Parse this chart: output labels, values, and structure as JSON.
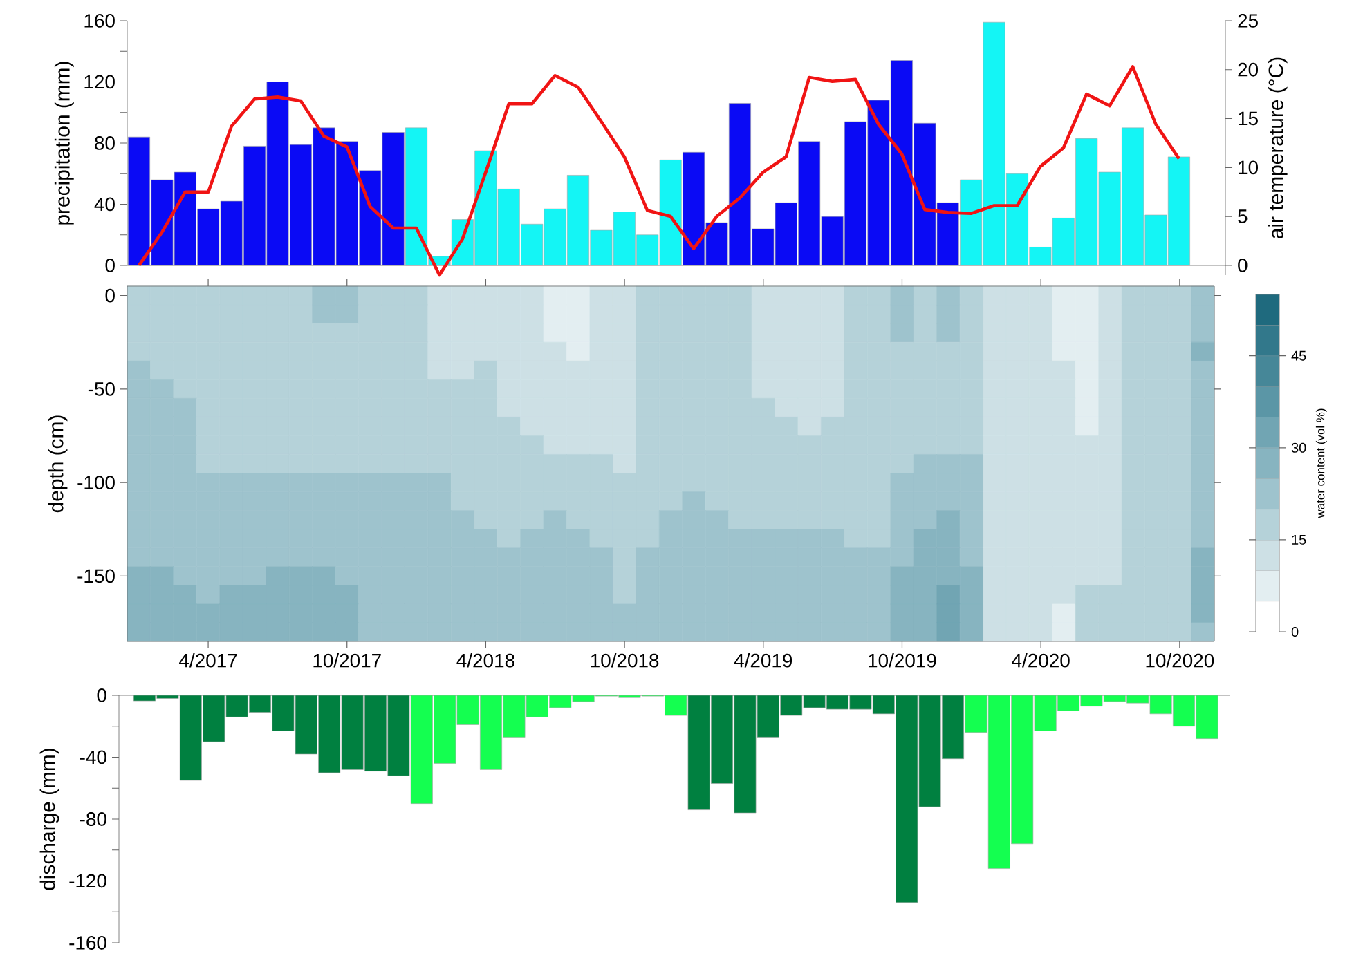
{
  "chart_data": [
    {
      "type": "bar",
      "ylabel": "precipitation (mm)",
      "categories": [
        null,
        null,
        null,
        null,
        null,
        null,
        null,
        null,
        null,
        null,
        null,
        null,
        null,
        null,
        null,
        null,
        null,
        null,
        null,
        null,
        null,
        null,
        null,
        null,
        null,
        null,
        null,
        null,
        null,
        null,
        null,
        null,
        null,
        null,
        null,
        null,
        null,
        null,
        null,
        null,
        null,
        null,
        null,
        null,
        null,
        null
      ],
      "values": [
        84,
        56,
        61,
        37,
        42,
        78,
        120,
        79,
        90,
        81,
        62,
        87,
        90,
        6,
        30,
        75,
        50,
        27,
        37,
        59,
        23,
        35,
        20,
        69,
        74,
        28,
        106,
        24,
        41,
        81,
        32,
        94,
        108,
        134,
        93,
        41,
        56,
        159,
        60,
        12,
        31,
        83,
        61,
        90,
        33,
        71
      ],
      "colors": [
        "#0a0af5",
        "#0a0af5",
        "#0a0af5",
        "#0a0af5",
        "#0a0af5",
        "#0a0af5",
        "#0a0af5",
        "#0a0af5",
        "#0a0af5",
        "#0a0af5",
        "#0a0af5",
        "#0a0af5",
        "#14f5f5",
        "#14f5f5",
        "#14f5f5",
        "#14f5f5",
        "#14f5f5",
        "#14f5f5",
        "#14f5f5",
        "#14f5f5",
        "#14f5f5",
        "#14f5f5",
        "#14f5f5",
        "#14f5f5",
        "#0a0af5",
        "#0a0af5",
        "#0a0af5",
        "#0a0af5",
        "#0a0af5",
        "#0a0af5",
        "#0a0af5",
        "#0a0af5",
        "#0a0af5",
        "#0a0af5",
        "#0a0af5",
        "#0a0af5",
        "#14f5f5",
        "#14f5f5",
        "#14f5f5",
        "#14f5f5",
        "#14f5f5",
        "#14f5f5",
        "#14f5f5",
        "#14f5f5",
        "#14f5f5",
        "#14f5f5"
      ],
      "ylim": [
        0,
        160
      ],
      "yticks": [
        0,
        {
          "value": 20,
          "label": null
        },
        40,
        {
          "value": 60,
          "label": null
        },
        80,
        {
          "value": 100,
          "label": null
        },
        120,
        {
          "value": 140,
          "label": null
        },
        160
      ],
      "tick_labels": "y"
    },
    {
      "type": "line",
      "ylabel": "air temperature (°C)",
      "color": "#f01414",
      "categories": [
        null,
        null,
        null,
        null,
        null,
        null,
        null,
        null,
        null,
        null,
        null,
        null,
        null,
        null,
        null,
        null,
        null,
        null,
        null,
        null,
        null,
        null,
        null,
        null,
        null,
        null,
        null,
        null,
        null,
        null,
        null,
        null,
        null,
        null,
        null,
        null,
        null,
        null,
        null,
        null,
        null,
        null,
        null,
        null,
        null,
        null
      ],
      "values": [
        0,
        3.4,
        7.5,
        7.5,
        14.2,
        17.0,
        17.2,
        16.8,
        13.2,
        12.1,
        6.0,
        3.8,
        3.8,
        -1.0,
        2.7,
        9.5,
        16.5,
        16.5,
        19.4,
        18.2,
        14.7,
        11.1,
        5.6,
        5.0,
        1.7,
        5.0,
        6.9,
        9.5,
        11.1,
        19.2,
        18.8,
        19.0,
        14.4,
        11.4,
        5.7,
        5.4,
        5.3,
        6.1,
        6.1,
        10.1,
        12.0,
        17.5,
        16.3,
        20.3,
        14.4,
        10.9
      ],
      "ylim": [
        -1,
        25
      ],
      "yticks": [
        0,
        5,
        10,
        15,
        20,
        25
      ],
      "tick_labels": "y"
    },
    {
      "type": "heatmap",
      "ylabel": "depth (cm)",
      "clabel": "water content (vol %)",
      "categories": [
        null,
        null,
        null,
        "4/2017",
        null,
        null,
        null,
        null,
        null,
        "10/2017",
        null,
        null,
        null,
        null,
        null,
        "4/2018",
        null,
        null,
        null,
        null,
        null,
        "10/2018",
        null,
        null,
        null,
        null,
        null,
        "4/2019",
        null,
        null,
        null,
        null,
        null,
        "10/2019",
        null,
        null,
        null,
        null,
        null,
        "4/2020",
        null,
        null,
        null,
        null,
        null,
        "10/2020",
        null
      ],
      "y_categories": [
        "0",
        null,
        null,
        null,
        null,
        "-50",
        null,
        null,
        null,
        null,
        "-100",
        null,
        null,
        null,
        null,
        "-150",
        null,
        null,
        null
      ],
      "cells": [
        [
          17.5,
          17.5,
          17.5,
          17.5,
          17.5,
          17.5,
          17.5,
          17.5,
          22.5,
          22.5,
          17.5,
          17.5,
          17.5,
          12.5,
          12.5,
          12.5,
          12.5,
          12.5,
          7.5,
          7.5,
          12.5,
          12.5,
          17.5,
          17.5,
          17.5,
          17.5,
          17.5,
          12.5,
          12.5,
          12.5,
          12.5,
          17.5,
          17.5,
          22.5,
          17.5,
          22.5,
          17.5,
          12.5,
          12.5,
          12.5,
          7.5,
          7.5,
          12.5,
          17.5,
          17.5,
          17.5,
          22.5
        ],
        [
          17.5,
          17.5,
          17.5,
          17.5,
          17.5,
          17.5,
          17.5,
          17.5,
          22.5,
          22.5,
          17.5,
          17.5,
          17.5,
          12.5,
          12.5,
          12.5,
          12.5,
          12.5,
          7.5,
          7.5,
          12.5,
          12.5,
          17.5,
          17.5,
          17.5,
          17.5,
          17.5,
          12.5,
          12.5,
          12.5,
          12.5,
          17.5,
          17.5,
          22.5,
          17.5,
          22.5,
          17.5,
          12.5,
          12.5,
          12.5,
          7.5,
          7.5,
          12.5,
          17.5,
          17.5,
          17.5,
          22.5
        ],
        [
          17.5,
          17.5,
          17.5,
          17.5,
          17.5,
          17.5,
          17.5,
          17.5,
          17.5,
          17.5,
          17.5,
          17.5,
          17.5,
          12.5,
          12.5,
          12.5,
          12.5,
          12.5,
          7.5,
          7.5,
          12.5,
          12.5,
          17.5,
          17.5,
          17.5,
          17.5,
          17.5,
          12.5,
          12.5,
          12.5,
          12.5,
          17.5,
          17.5,
          22.5,
          17.5,
          22.5,
          17.5,
          12.5,
          12.5,
          12.5,
          7.5,
          7.5,
          12.5,
          17.5,
          17.5,
          17.5,
          22.5
        ],
        [
          17.5,
          17.5,
          17.5,
          17.5,
          17.5,
          17.5,
          17.5,
          17.5,
          17.5,
          17.5,
          17.5,
          17.5,
          17.5,
          12.5,
          12.5,
          12.5,
          12.5,
          12.5,
          12.5,
          7.5,
          12.5,
          12.5,
          17.5,
          17.5,
          17.5,
          17.5,
          17.5,
          12.5,
          12.5,
          12.5,
          12.5,
          17.5,
          17.5,
          17.5,
          17.5,
          17.5,
          17.5,
          12.5,
          12.5,
          12.5,
          7.5,
          7.5,
          12.5,
          17.5,
          17.5,
          17.5,
          27.5
        ],
        [
          22.5,
          17.5,
          17.5,
          17.5,
          17.5,
          17.5,
          17.5,
          17.5,
          17.5,
          17.5,
          17.5,
          17.5,
          17.5,
          12.5,
          12.5,
          17.5,
          12.5,
          12.5,
          12.5,
          12.5,
          12.5,
          12.5,
          17.5,
          17.5,
          17.5,
          17.5,
          17.5,
          12.5,
          12.5,
          12.5,
          12.5,
          17.5,
          17.5,
          17.5,
          17.5,
          17.5,
          17.5,
          12.5,
          12.5,
          12.5,
          12.5,
          7.5,
          12.5,
          17.5,
          17.5,
          17.5,
          22.5
        ],
        [
          22.5,
          22.5,
          17.5,
          17.5,
          17.5,
          17.5,
          17.5,
          17.5,
          17.5,
          17.5,
          17.5,
          17.5,
          17.5,
          17.5,
          17.5,
          17.5,
          12.5,
          12.5,
          12.5,
          12.5,
          12.5,
          12.5,
          17.5,
          17.5,
          17.5,
          17.5,
          17.5,
          12.5,
          12.5,
          12.5,
          12.5,
          17.5,
          17.5,
          17.5,
          17.5,
          17.5,
          17.5,
          12.5,
          12.5,
          12.5,
          12.5,
          7.5,
          12.5,
          17.5,
          17.5,
          17.5,
          22.5
        ],
        [
          22.5,
          22.5,
          22.5,
          17.5,
          17.5,
          17.5,
          17.5,
          17.5,
          17.5,
          17.5,
          17.5,
          17.5,
          17.5,
          17.5,
          17.5,
          17.5,
          12.5,
          12.5,
          12.5,
          12.5,
          12.5,
          12.5,
          17.5,
          17.5,
          17.5,
          17.5,
          17.5,
          17.5,
          12.5,
          12.5,
          12.5,
          17.5,
          17.5,
          17.5,
          17.5,
          17.5,
          17.5,
          12.5,
          12.5,
          12.5,
          12.5,
          7.5,
          12.5,
          17.5,
          17.5,
          17.5,
          22.5
        ],
        [
          22.5,
          22.5,
          22.5,
          17.5,
          17.5,
          17.5,
          17.5,
          17.5,
          17.5,
          17.5,
          17.5,
          17.5,
          17.5,
          17.5,
          17.5,
          17.5,
          17.5,
          12.5,
          12.5,
          12.5,
          12.5,
          12.5,
          17.5,
          17.5,
          17.5,
          17.5,
          17.5,
          17.5,
          17.5,
          12.5,
          17.5,
          17.5,
          17.5,
          17.5,
          17.5,
          17.5,
          17.5,
          12.5,
          12.5,
          12.5,
          12.5,
          7.5,
          12.5,
          17.5,
          17.5,
          17.5,
          22.5
        ],
        [
          22.5,
          22.5,
          22.5,
          17.5,
          17.5,
          17.5,
          17.5,
          17.5,
          17.5,
          17.5,
          17.5,
          17.5,
          17.5,
          17.5,
          17.5,
          17.5,
          17.5,
          17.5,
          12.5,
          12.5,
          12.5,
          12.5,
          17.5,
          17.5,
          17.5,
          17.5,
          17.5,
          17.5,
          17.5,
          17.5,
          17.5,
          17.5,
          17.5,
          17.5,
          17.5,
          17.5,
          17.5,
          12.5,
          12.5,
          12.5,
          12.5,
          12.5,
          12.5,
          17.5,
          17.5,
          17.5,
          22.5
        ],
        [
          22.5,
          22.5,
          22.5,
          17.5,
          17.5,
          17.5,
          17.5,
          17.5,
          17.5,
          17.5,
          17.5,
          17.5,
          17.5,
          17.5,
          17.5,
          17.5,
          17.5,
          17.5,
          17.5,
          17.5,
          17.5,
          12.5,
          17.5,
          17.5,
          17.5,
          17.5,
          17.5,
          17.5,
          17.5,
          17.5,
          17.5,
          17.5,
          17.5,
          17.5,
          22.5,
          22.5,
          22.5,
          12.5,
          12.5,
          12.5,
          12.5,
          12.5,
          12.5,
          17.5,
          17.5,
          17.5,
          22.5
        ],
        [
          22.5,
          22.5,
          22.5,
          22.5,
          22.5,
          22.5,
          22.5,
          22.5,
          22.5,
          22.5,
          22.5,
          22.5,
          22.5,
          22.5,
          17.5,
          17.5,
          17.5,
          17.5,
          17.5,
          17.5,
          17.5,
          17.5,
          17.5,
          17.5,
          17.5,
          17.5,
          17.5,
          17.5,
          17.5,
          17.5,
          17.5,
          17.5,
          17.5,
          22.5,
          22.5,
          22.5,
          22.5,
          12.5,
          12.5,
          12.5,
          12.5,
          12.5,
          12.5,
          17.5,
          17.5,
          17.5,
          22.5
        ],
        [
          22.5,
          22.5,
          22.5,
          22.5,
          22.5,
          22.5,
          22.5,
          22.5,
          22.5,
          22.5,
          22.5,
          22.5,
          22.5,
          22.5,
          17.5,
          17.5,
          17.5,
          17.5,
          17.5,
          17.5,
          17.5,
          17.5,
          17.5,
          17.5,
          22.5,
          17.5,
          17.5,
          17.5,
          17.5,
          17.5,
          17.5,
          17.5,
          17.5,
          22.5,
          22.5,
          22.5,
          22.5,
          12.5,
          12.5,
          12.5,
          12.5,
          12.5,
          12.5,
          17.5,
          17.5,
          17.5,
          22.5
        ],
        [
          22.5,
          22.5,
          22.5,
          22.5,
          22.5,
          22.5,
          22.5,
          22.5,
          22.5,
          22.5,
          22.5,
          22.5,
          22.5,
          22.5,
          22.5,
          17.5,
          17.5,
          17.5,
          22.5,
          17.5,
          17.5,
          17.5,
          17.5,
          22.5,
          22.5,
          22.5,
          17.5,
          17.5,
          17.5,
          17.5,
          17.5,
          17.5,
          17.5,
          22.5,
          22.5,
          27.5,
          22.5,
          12.5,
          12.5,
          12.5,
          12.5,
          12.5,
          12.5,
          17.5,
          17.5,
          17.5,
          22.5
        ],
        [
          22.5,
          22.5,
          22.5,
          22.5,
          22.5,
          22.5,
          22.5,
          22.5,
          22.5,
          22.5,
          22.5,
          22.5,
          22.5,
          22.5,
          22.5,
          22.5,
          17.5,
          22.5,
          22.5,
          22.5,
          17.5,
          17.5,
          17.5,
          22.5,
          22.5,
          22.5,
          22.5,
          22.5,
          22.5,
          22.5,
          22.5,
          17.5,
          17.5,
          22.5,
          27.5,
          27.5,
          22.5,
          12.5,
          12.5,
          12.5,
          12.5,
          12.5,
          12.5,
          17.5,
          17.5,
          17.5,
          22.5
        ],
        [
          22.5,
          22.5,
          22.5,
          22.5,
          22.5,
          22.5,
          22.5,
          22.5,
          22.5,
          22.5,
          22.5,
          22.5,
          22.5,
          22.5,
          22.5,
          22.5,
          22.5,
          22.5,
          22.5,
          22.5,
          22.5,
          17.5,
          22.5,
          22.5,
          22.5,
          22.5,
          22.5,
          22.5,
          22.5,
          22.5,
          22.5,
          22.5,
          22.5,
          22.5,
          27.5,
          27.5,
          22.5,
          12.5,
          12.5,
          12.5,
          12.5,
          12.5,
          12.5,
          17.5,
          17.5,
          17.5,
          27.5
        ],
        [
          27.5,
          27.5,
          22.5,
          22.5,
          22.5,
          22.5,
          27.5,
          27.5,
          27.5,
          22.5,
          22.5,
          22.5,
          22.5,
          22.5,
          22.5,
          22.5,
          22.5,
          22.5,
          22.5,
          22.5,
          22.5,
          17.5,
          22.5,
          22.5,
          22.5,
          22.5,
          22.5,
          22.5,
          22.5,
          22.5,
          22.5,
          22.5,
          22.5,
          27.5,
          27.5,
          27.5,
          27.5,
          12.5,
          12.5,
          12.5,
          12.5,
          12.5,
          12.5,
          17.5,
          17.5,
          17.5,
          27.5
        ],
        [
          27.5,
          27.5,
          27.5,
          22.5,
          27.5,
          27.5,
          27.5,
          27.5,
          27.5,
          27.5,
          22.5,
          22.5,
          22.5,
          22.5,
          22.5,
          22.5,
          22.5,
          22.5,
          22.5,
          22.5,
          22.5,
          17.5,
          22.5,
          22.5,
          22.5,
          22.5,
          22.5,
          22.5,
          22.5,
          22.5,
          22.5,
          22.5,
          22.5,
          27.5,
          27.5,
          32.5,
          27.5,
          12.5,
          12.5,
          12.5,
          12.5,
          17.5,
          17.5,
          17.5,
          17.5,
          17.5,
          27.5
        ],
        [
          27.5,
          27.5,
          27.5,
          27.5,
          27.5,
          27.5,
          27.5,
          27.5,
          27.5,
          27.5,
          22.5,
          22.5,
          22.5,
          22.5,
          22.5,
          22.5,
          22.5,
          22.5,
          22.5,
          22.5,
          22.5,
          22.5,
          22.5,
          22.5,
          22.5,
          22.5,
          22.5,
          22.5,
          22.5,
          22.5,
          22.5,
          22.5,
          22.5,
          27.5,
          27.5,
          32.5,
          27.5,
          12.5,
          12.5,
          12.5,
          7.5,
          17.5,
          17.5,
          17.5,
          17.5,
          17.5,
          27.5
        ],
        [
          27.5,
          27.5,
          27.5,
          27.5,
          27.5,
          27.5,
          27.5,
          27.5,
          27.5,
          27.5,
          22.5,
          22.5,
          22.5,
          22.5,
          22.5,
          22.5,
          22.5,
          22.5,
          22.5,
          22.5,
          22.5,
          22.5,
          22.5,
          22.5,
          22.5,
          22.5,
          22.5,
          22.5,
          22.5,
          22.5,
          22.5,
          22.5,
          22.5,
          27.5,
          27.5,
          32.5,
          27.5,
          12.5,
          12.5,
          12.5,
          7.5,
          17.5,
          17.5,
          17.5,
          17.5,
          17.5,
          22.5
        ]
      ],
      "clim": [
        0,
        55
      ],
      "cticks": [
        0,
        15,
        30,
        45
      ]
    },
    {
      "type": "bar",
      "ylabel": "discharge (mm)",
      "categories": [
        null,
        null,
        null,
        null,
        null,
        null,
        null,
        null,
        null,
        null,
        null,
        null,
        null,
        null,
        null,
        null,
        null,
        null,
        null,
        null,
        null,
        null,
        null,
        null,
        null,
        null,
        null,
        null,
        null,
        null,
        null,
        null,
        null,
        null,
        null,
        null,
        null,
        null,
        null,
        null,
        null,
        null,
        null,
        null,
        null,
        null,
        null
      ],
      "values": [
        -3.6,
        -2,
        -55,
        -30,
        -14,
        -11,
        -23,
        -38,
        -50,
        -48,
        -49,
        -52,
        -70,
        -44,
        -19,
        -48,
        -27,
        -14,
        -8,
        -4,
        -0.5,
        -1.5,
        -0.5,
        -13,
        -74,
        -57,
        -76,
        -27,
        -13,
        -8,
        -9,
        -9,
        -12,
        -134,
        -72,
        -41,
        -24,
        -112,
        -96,
        -23,
        -10,
        -7,
        -4,
        -5,
        -12,
        -20,
        -28
      ],
      "colors": [
        "#008040",
        "#008040",
        "#008040",
        "#008040",
        "#008040",
        "#008040",
        "#008040",
        "#008040",
        "#008040",
        "#008040",
        "#008040",
        "#008040",
        "#14ff50",
        "#14ff50",
        "#14ff50",
        "#14ff50",
        "#14ff50",
        "#14ff50",
        "#14ff50",
        "#14ff50",
        "#14ff50",
        "#14ff50",
        "#14ff50",
        "#14ff50",
        "#008040",
        "#008040",
        "#008040",
        "#008040",
        "#008040",
        "#008040",
        "#008040",
        "#008040",
        "#008040",
        "#008040",
        "#008040",
        "#008040",
        "#14ff50",
        "#14ff50",
        "#14ff50",
        "#14ff50",
        "#14ff50",
        "#14ff50",
        "#14ff50",
        "#14ff50",
        "#14ff50",
        "#14ff50",
        "#14ff50"
      ],
      "ylim": [
        -160,
        0
      ],
      "yticks": [
        -160,
        {
          "value": -140,
          "label": null
        },
        -120,
        {
          "value": -100,
          "label": null
        },
        -80,
        {
          "value": -60,
          "label": null
        },
        -40,
        {
          "value": -20,
          "label": null
        },
        0
      ],
      "tick_labels": "y"
    }
  ]
}
